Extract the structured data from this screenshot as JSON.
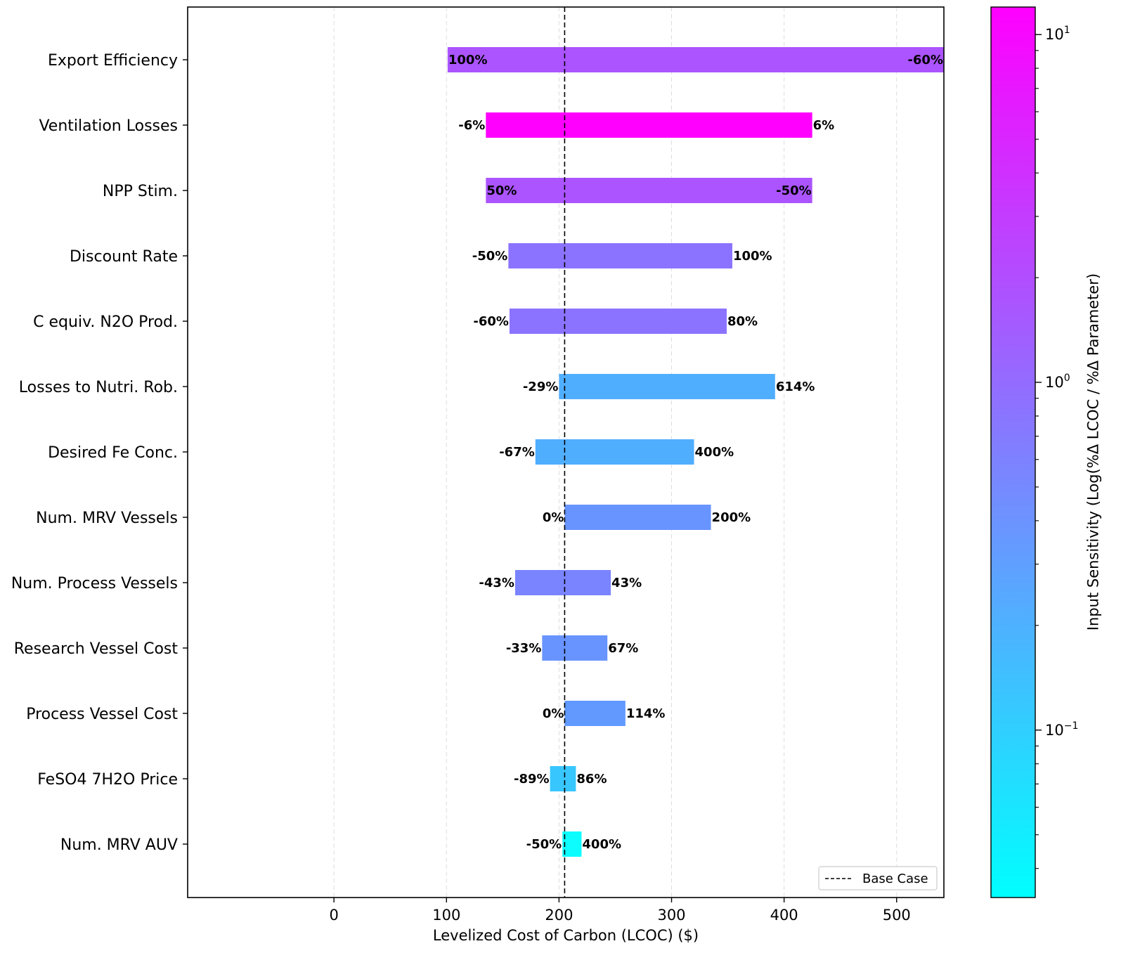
{
  "chart_data": {
    "type": "bar",
    "orientation": "horizontal",
    "subtype": "tornado",
    "xlabel": "Levelized Cost of Carbon (LCOC) ($)",
    "xlim": [
      -130,
      542
    ],
    "xticks": [
      0,
      100,
      200,
      300,
      400,
      500
    ],
    "base_case": 205,
    "base_case_label": "Base Case",
    "legend_position": "lower-right",
    "grid": "vertical dashed",
    "colorbar": {
      "label": "Input Sensitivity (Log(%Δ LCOC / %Δ Parameter)",
      "scale": "log",
      "range": [
        0.033,
        12
      ],
      "colors": [
        "#00ffff",
        "#ff00ff"
      ],
      "ticks": [
        {
          "value": 10,
          "base": "10",
          "exp": "1"
        },
        {
          "value": 1,
          "base": "10",
          "exp": "0"
        },
        {
          "value": 0.1,
          "base": "10",
          "exp": "−1"
        }
      ]
    },
    "categories": [
      "Export Efficiency",
      "Ventilation Losses",
      "NPP Stim.",
      "Discount Rate",
      "C equiv. N2O Prod.",
      "Losses to Nutri. Rob.",
      "Desired Fe Conc.",
      "Num. MRV Vessels",
      "Num. Process Vessels",
      "Research Vessel Cost",
      "Process Vessel Cost",
      "FeSO4 7H2O Price",
      "Num. MRV AUV"
    ],
    "bars": [
      {
        "low": 101,
        "high": 542,
        "left_label": "100%",
        "right_label": "-60%",
        "labels_inside": true,
        "color": "#ab54ff"
      },
      {
        "low": 135,
        "high": 425,
        "left_label": "-6%",
        "right_label": "6%",
        "labels_inside": false,
        "color": "#ff00ff"
      },
      {
        "low": 135,
        "high": 425,
        "left_label": "50%",
        "right_label": "-50%",
        "labels_inside": true,
        "color": "#ab54ff"
      },
      {
        "low": 155,
        "high": 354,
        "left_label": "-50%",
        "right_label": "100%",
        "labels_inside": false,
        "color": "#8c73ff"
      },
      {
        "low": 156,
        "high": 349,
        "left_label": "-60%",
        "right_label": "80%",
        "labels_inside": false,
        "color": "#8c73ff"
      },
      {
        "low": 200,
        "high": 392,
        "left_label": "-29%",
        "right_label": "614%",
        "labels_inside": false,
        "color": "#50aeff"
      },
      {
        "low": 179,
        "high": 320,
        "left_label": "-67%",
        "right_label": "400%",
        "labels_inside": false,
        "color": "#50aeff"
      },
      {
        "low": 205,
        "high": 335,
        "left_label": "0%",
        "right_label": "200%",
        "labels_inside": false,
        "color": "#6894ff"
      },
      {
        "low": 161,
        "high": 246,
        "left_label": "-43%",
        "right_label": "43%",
        "labels_inside": false,
        "color": "#7a84ff"
      },
      {
        "low": 185,
        "high": 243,
        "left_label": "-33%",
        "right_label": "67%",
        "labels_inside": false,
        "color": "#6894ff"
      },
      {
        "low": 205,
        "high": 259,
        "left_label": "0%",
        "right_label": "114%",
        "labels_inside": false,
        "color": "#6199ff"
      },
      {
        "low": 192,
        "high": 215,
        "left_label": "-89%",
        "right_label": "86%",
        "labels_inside": false,
        "color": "#38c6ff"
      },
      {
        "low": 203,
        "high": 220,
        "left_label": "-50%",
        "right_label": "400%",
        "labels_inside": false,
        "color": "#0dfdff"
      }
    ]
  }
}
